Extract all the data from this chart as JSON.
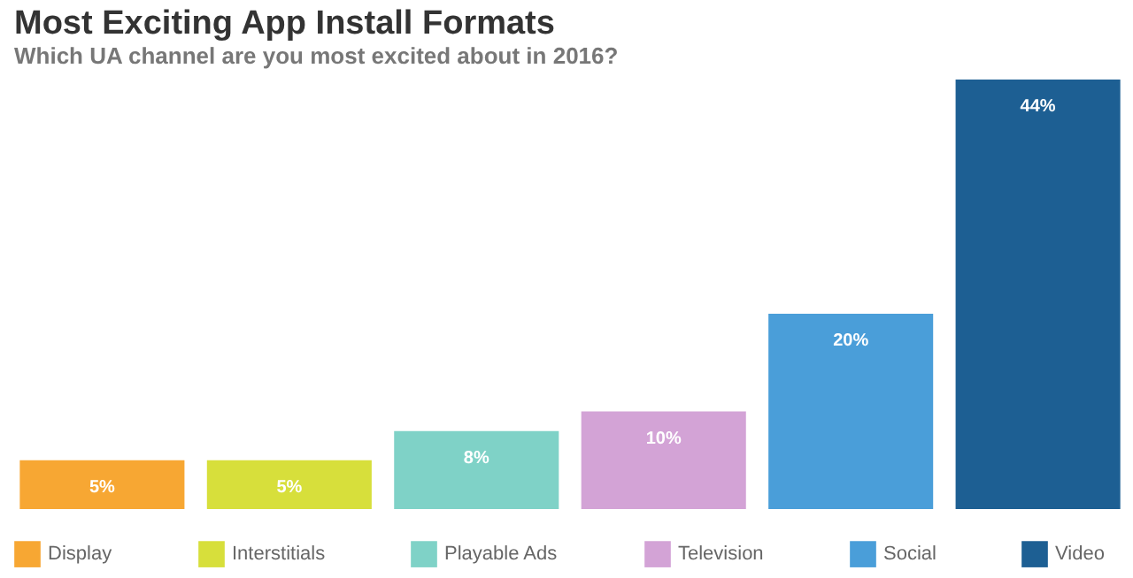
{
  "chart_data": {
    "type": "bar",
    "title": "Most Exciting App Install Formats",
    "subtitle": "Which UA channel are you most excited about in 2016?",
    "categories": [
      null
    ],
    "series": [
      {
        "name": "Display",
        "color": "#f7a733",
        "values": [
          5
        ],
        "value_labels": [
          "5%"
        ]
      },
      {
        "name": "Interstitials",
        "color": "#d7df3b",
        "values": [
          5
        ],
        "value_labels": [
          "5%"
        ]
      },
      {
        "name": "Playable Ads",
        "color": "#7fd2c7",
        "values": [
          8
        ],
        "value_labels": [
          "8%"
        ]
      },
      {
        "name": "Television",
        "color": "#d3a3d6",
        "values": [
          10
        ],
        "value_labels": [
          "10%"
        ]
      },
      {
        "name": "Social",
        "color": "#4a9ed9",
        "values": [
          20
        ],
        "value_labels": [
          "20%"
        ]
      },
      {
        "name": "Video",
        "color": "#1d5f93",
        "values": [
          44
        ],
        "value_labels": [
          "44%"
        ]
      }
    ],
    "legend": "bottom"
  }
}
